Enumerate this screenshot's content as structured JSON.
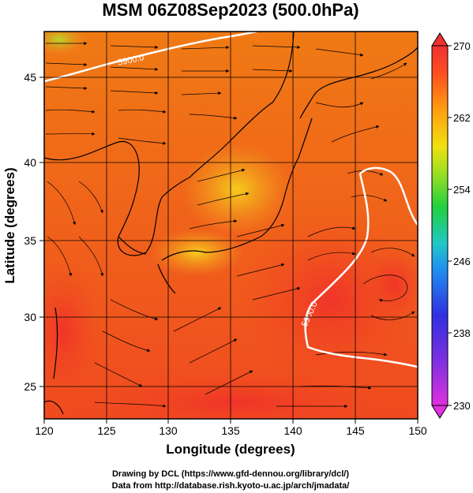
{
  "title": "MSM 06Z08Sep2023 (500.0hPa)",
  "xlabel": "Longitude (degrees)",
  "ylabel": "Latitude  (degrees)",
  "x_ticks": [
    "120",
    "125",
    "130",
    "135",
    "140",
    "145",
    "150"
  ],
  "y_ticks": [
    "25",
    "30",
    "35",
    "40",
    "45"
  ],
  "colorbar": {
    "ticks": [
      "230",
      "238",
      "246",
      "254",
      "262",
      "270"
    ],
    "colors": [
      "#e040e0",
      "#4030e0",
      "#2080f0",
      "#20c0c0",
      "#20d040",
      "#a0e020",
      "#f0e000",
      "#ff9000",
      "#ff4000",
      "#ff3030"
    ]
  },
  "contours": [
    "5900.0",
    "5900.0"
  ],
  "credits": {
    "line1": "Drawing by DCL (https://www.gfd-dennou.org/library/dcl/)",
    "line2": "Data from http://database.rish.kyoto-u.ac.jp/arch/jmadata/"
  },
  "chart_data": {
    "type": "heatmap",
    "title": "MSM 06Z08Sep2023 (500.0hPa)",
    "xlabel": "Longitude (degrees)",
    "ylabel": "Latitude  (degrees)",
    "xlim": [
      120,
      150
    ],
    "ylim": [
      22.5,
      47.5
    ],
    "colorbar_range": [
      230,
      270
    ],
    "contour_level": 5900.0,
    "overlay": "streamlines"
  }
}
